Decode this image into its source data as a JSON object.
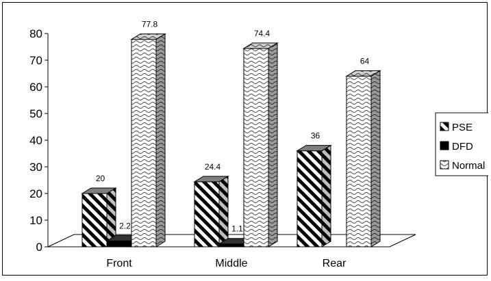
{
  "chart_data": {
    "type": "bar",
    "categories": [
      "Front",
      "Middle",
      "Rear"
    ],
    "series": [
      {
        "name": "PSE",
        "values": [
          20,
          24.4,
          36
        ],
        "pattern": "diagonal-stripes"
      },
      {
        "name": "DFD",
        "values": [
          2.2,
          1.1,
          null
        ],
        "pattern": "solid-black"
      },
      {
        "name": "Normal",
        "values": [
          77.8,
          74.4,
          64
        ],
        "pattern": "wave"
      }
    ],
    "data_labels": [
      [
        "20",
        "24.4",
        "36"
      ],
      [
        "2.2",
        "1.1",
        ""
      ],
      [
        "77.8",
        "74.4",
        "64"
      ]
    ],
    "ylim": [
      0,
      80
    ],
    "yticks": [
      0,
      10,
      20,
      30,
      40,
      50,
      60,
      70,
      80
    ],
    "legend_position": "right",
    "grid": false,
    "style": "3d-bar"
  }
}
